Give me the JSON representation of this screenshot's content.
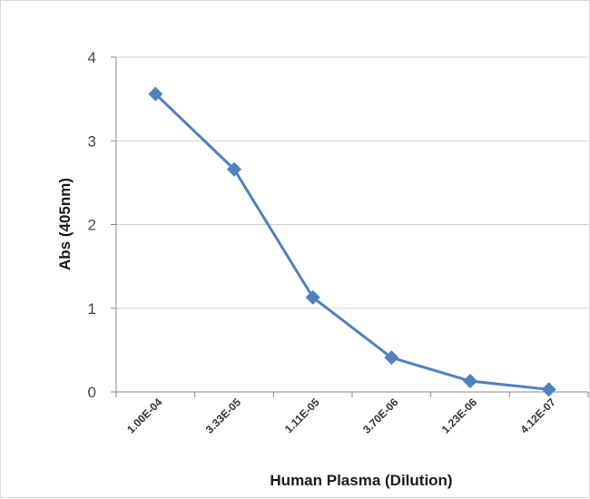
{
  "chart_data": {
    "type": "line",
    "title": "",
    "xlabel": "Human Plasma (Dilution)",
    "ylabel": "Abs (405nm)",
    "categories": [
      "1.00E-04",
      "3.33E-05",
      "1.11E-05",
      "3.70E-06",
      "1.23E-06",
      "4.12E-07"
    ],
    "series": [
      {
        "values": [
          3.56,
          2.66,
          1.13,
          0.41,
          0.13,
          0.03
        ]
      }
    ],
    "ylim": [
      0,
      4
    ],
    "yticks": [
      "0",
      "1",
      "2",
      "3",
      "4"
    ],
    "grid": true,
    "legend": "none",
    "marker": "diamond",
    "line_color": "#4f81bd"
  }
}
